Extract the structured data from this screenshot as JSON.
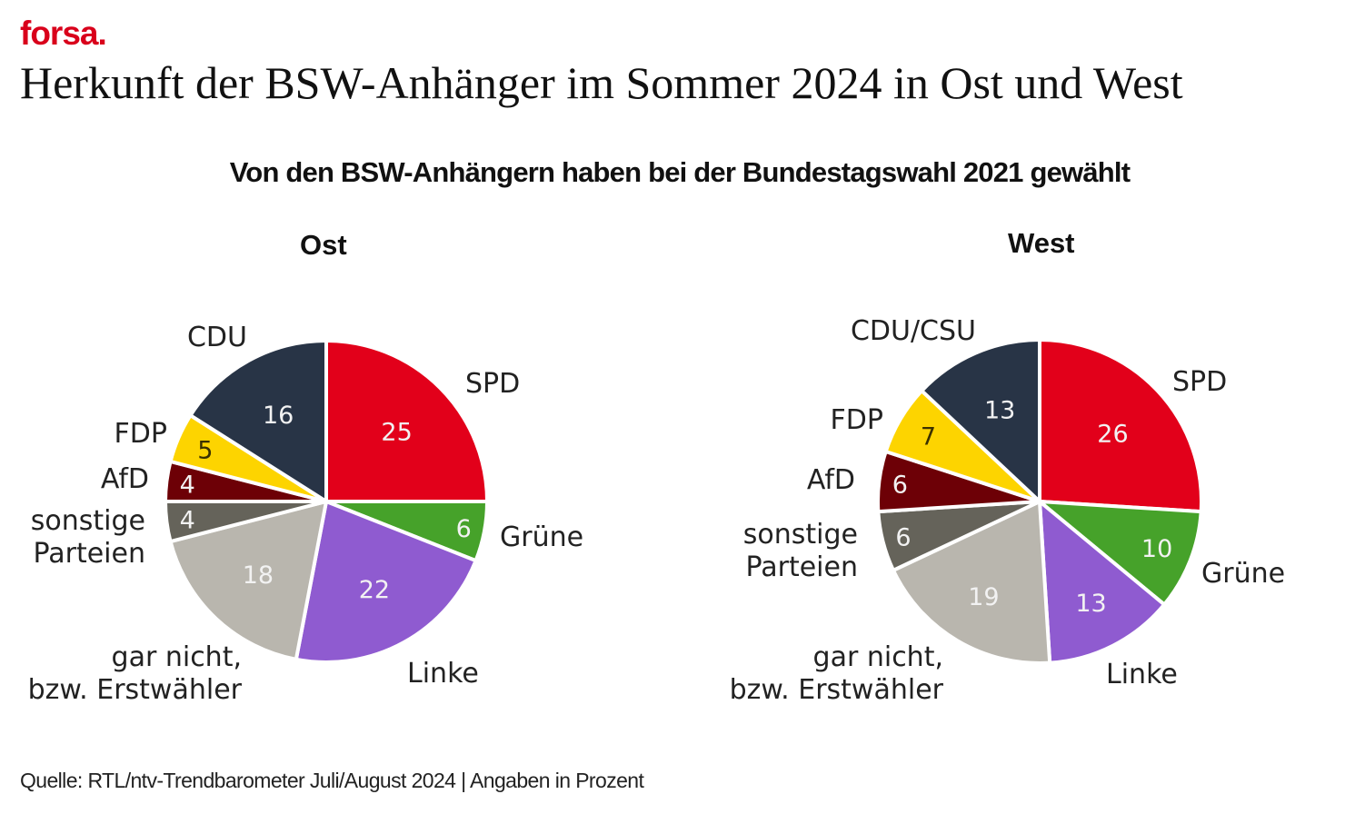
{
  "header": {
    "brand": "forsa.",
    "title": "Herkunft der BSW-Anhänger im Sommer 2024 in Ost und West",
    "subtitle": "Von den BSW-Anhängern haben bei der Bundestagswahl 2021 gewählt"
  },
  "footer": {
    "source": "Quelle: RTL/ntv-Trendbarometer Juli/August 2024 | Angaben in Prozent"
  },
  "colors": {
    "spd": "#e2001a",
    "gruene": "#46a22a",
    "linke": "#8f5bd0",
    "nichtwaehler": "#b9b6ae",
    "sonstige": "#65635a",
    "afd": "#6d0006",
    "fdp": "#fdd400",
    "union": "#283446"
  },
  "chart_data": [
    {
      "type": "pie",
      "title": "Ost",
      "unit": "Prozent",
      "slices": [
        {
          "label": "SPD",
          "value": 25,
          "color": "#e2001a"
        },
        {
          "label": "Grüne",
          "value": 6,
          "color": "#46a22a"
        },
        {
          "label": "Linke",
          "value": 22,
          "color": "#8f5bd0"
        },
        {
          "label": "gar nicht,\nbzw. Erstwähler",
          "value": 18,
          "color": "#b9b6ae"
        },
        {
          "label": "sonstige\nParteien",
          "value": 4,
          "color": "#65635a"
        },
        {
          "label": "AfD",
          "value": 4,
          "color": "#6d0006"
        },
        {
          "label": "FDP",
          "value": 5,
          "color": "#fdd400"
        },
        {
          "label": "CDU",
          "value": 16,
          "color": "#283446"
        }
      ]
    },
    {
      "type": "pie",
      "title": "West",
      "unit": "Prozent",
      "slices": [
        {
          "label": "SPD",
          "value": 26,
          "color": "#e2001a"
        },
        {
          "label": "Grüne",
          "value": 10,
          "color": "#46a22a"
        },
        {
          "label": "Linke",
          "value": 13,
          "color": "#8f5bd0"
        },
        {
          "label": "gar nicht,\nbzw. Erstwähler",
          "value": 19,
          "color": "#b9b6ae"
        },
        {
          "label": "sonstige\nParteien",
          "value": 6,
          "color": "#65635a"
        },
        {
          "label": "AfD",
          "value": 6,
          "color": "#6d0006"
        },
        {
          "label": "FDP",
          "value": 7,
          "color": "#fdd400"
        },
        {
          "label": "CDU/CSU",
          "value": 13,
          "color": "#283446"
        }
      ]
    }
  ]
}
